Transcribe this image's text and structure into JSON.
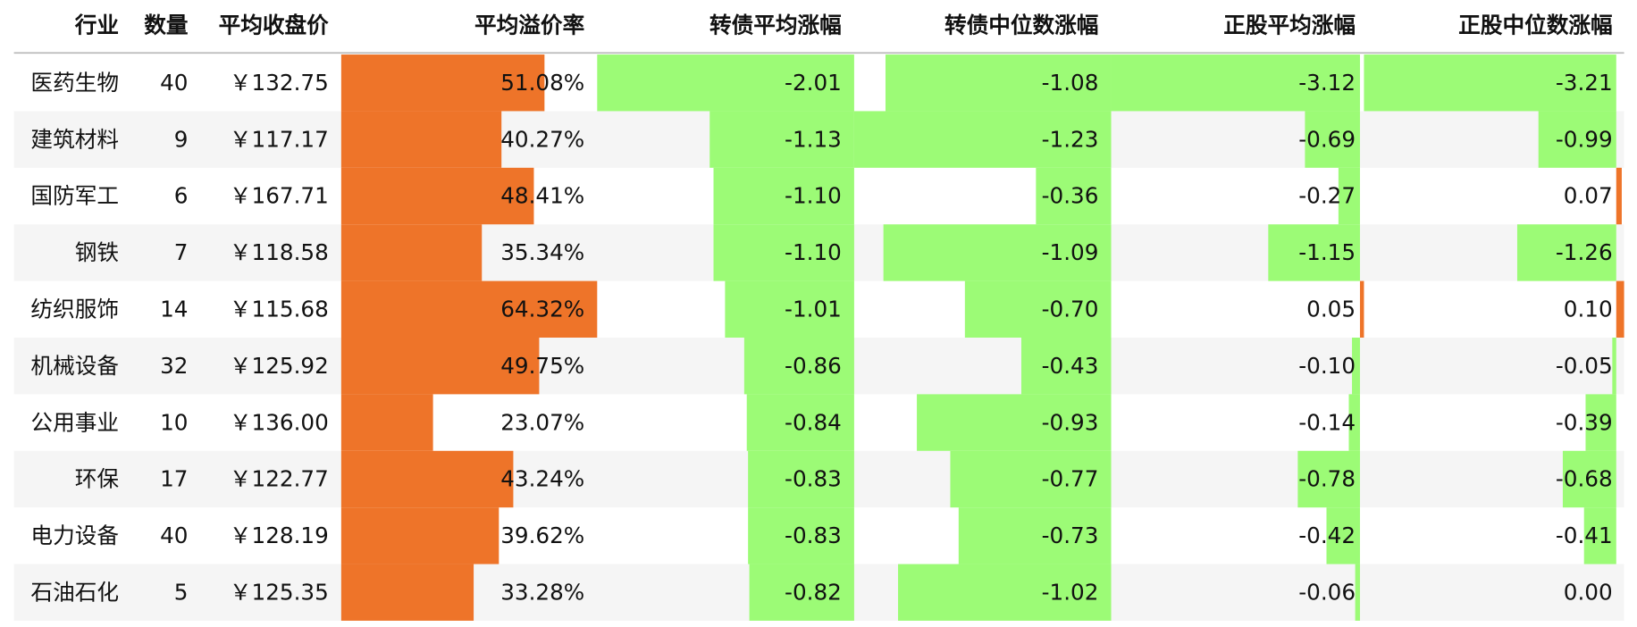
{
  "table": {
    "columns": [
      "行业",
      "数量",
      "平均收盘价",
      "平均溢价率",
      "转债平均涨幅",
      "转债中位数涨幅",
      "正股平均涨幅",
      "正股中位数涨幅"
    ],
    "rows": [
      [
        "医药生物",
        "40",
        "￥132.75",
        "51.08%",
        "-2.01",
        "-1.08",
        "-3.12",
        "-3.21"
      ],
      [
        "建筑材料",
        "9",
        "￥117.17",
        "40.27%",
        "-1.13",
        "-1.23",
        "-0.69",
        "-0.99"
      ],
      [
        "国防军工",
        "6",
        "￥167.71",
        "48.41%",
        "-1.10",
        "-0.36",
        "-0.27",
        "0.07"
      ],
      [
        "钢铁",
        "7",
        "￥118.58",
        "35.34%",
        "-1.10",
        "-1.09",
        "-1.15",
        "-1.26"
      ],
      [
        "纺织服饰",
        "14",
        "￥115.68",
        "64.32%",
        "-1.01",
        "-0.70",
        "0.05",
        "0.10"
      ],
      [
        "机械设备",
        "32",
        "￥125.92",
        "49.75%",
        "-0.86",
        "-0.43",
        "-0.10",
        "-0.05"
      ],
      [
        "公用事业",
        "10",
        "￥136.00",
        "23.07%",
        "-0.84",
        "-0.93",
        "-0.14",
        "-0.39"
      ],
      [
        "环保",
        "17",
        "￥122.77",
        "43.24%",
        "-0.83",
        "-0.77",
        "-0.78",
        "-0.68"
      ],
      [
        "电力设备",
        "40",
        "￥128.19",
        "39.62%",
        "-0.83",
        "-0.73",
        "-0.42",
        "-0.41"
      ],
      [
        "石油石化",
        "5",
        "￥125.35",
        "33.28%",
        "-0.82",
        "-1.02",
        "-0.06",
        "0.00"
      ]
    ]
  }
}
